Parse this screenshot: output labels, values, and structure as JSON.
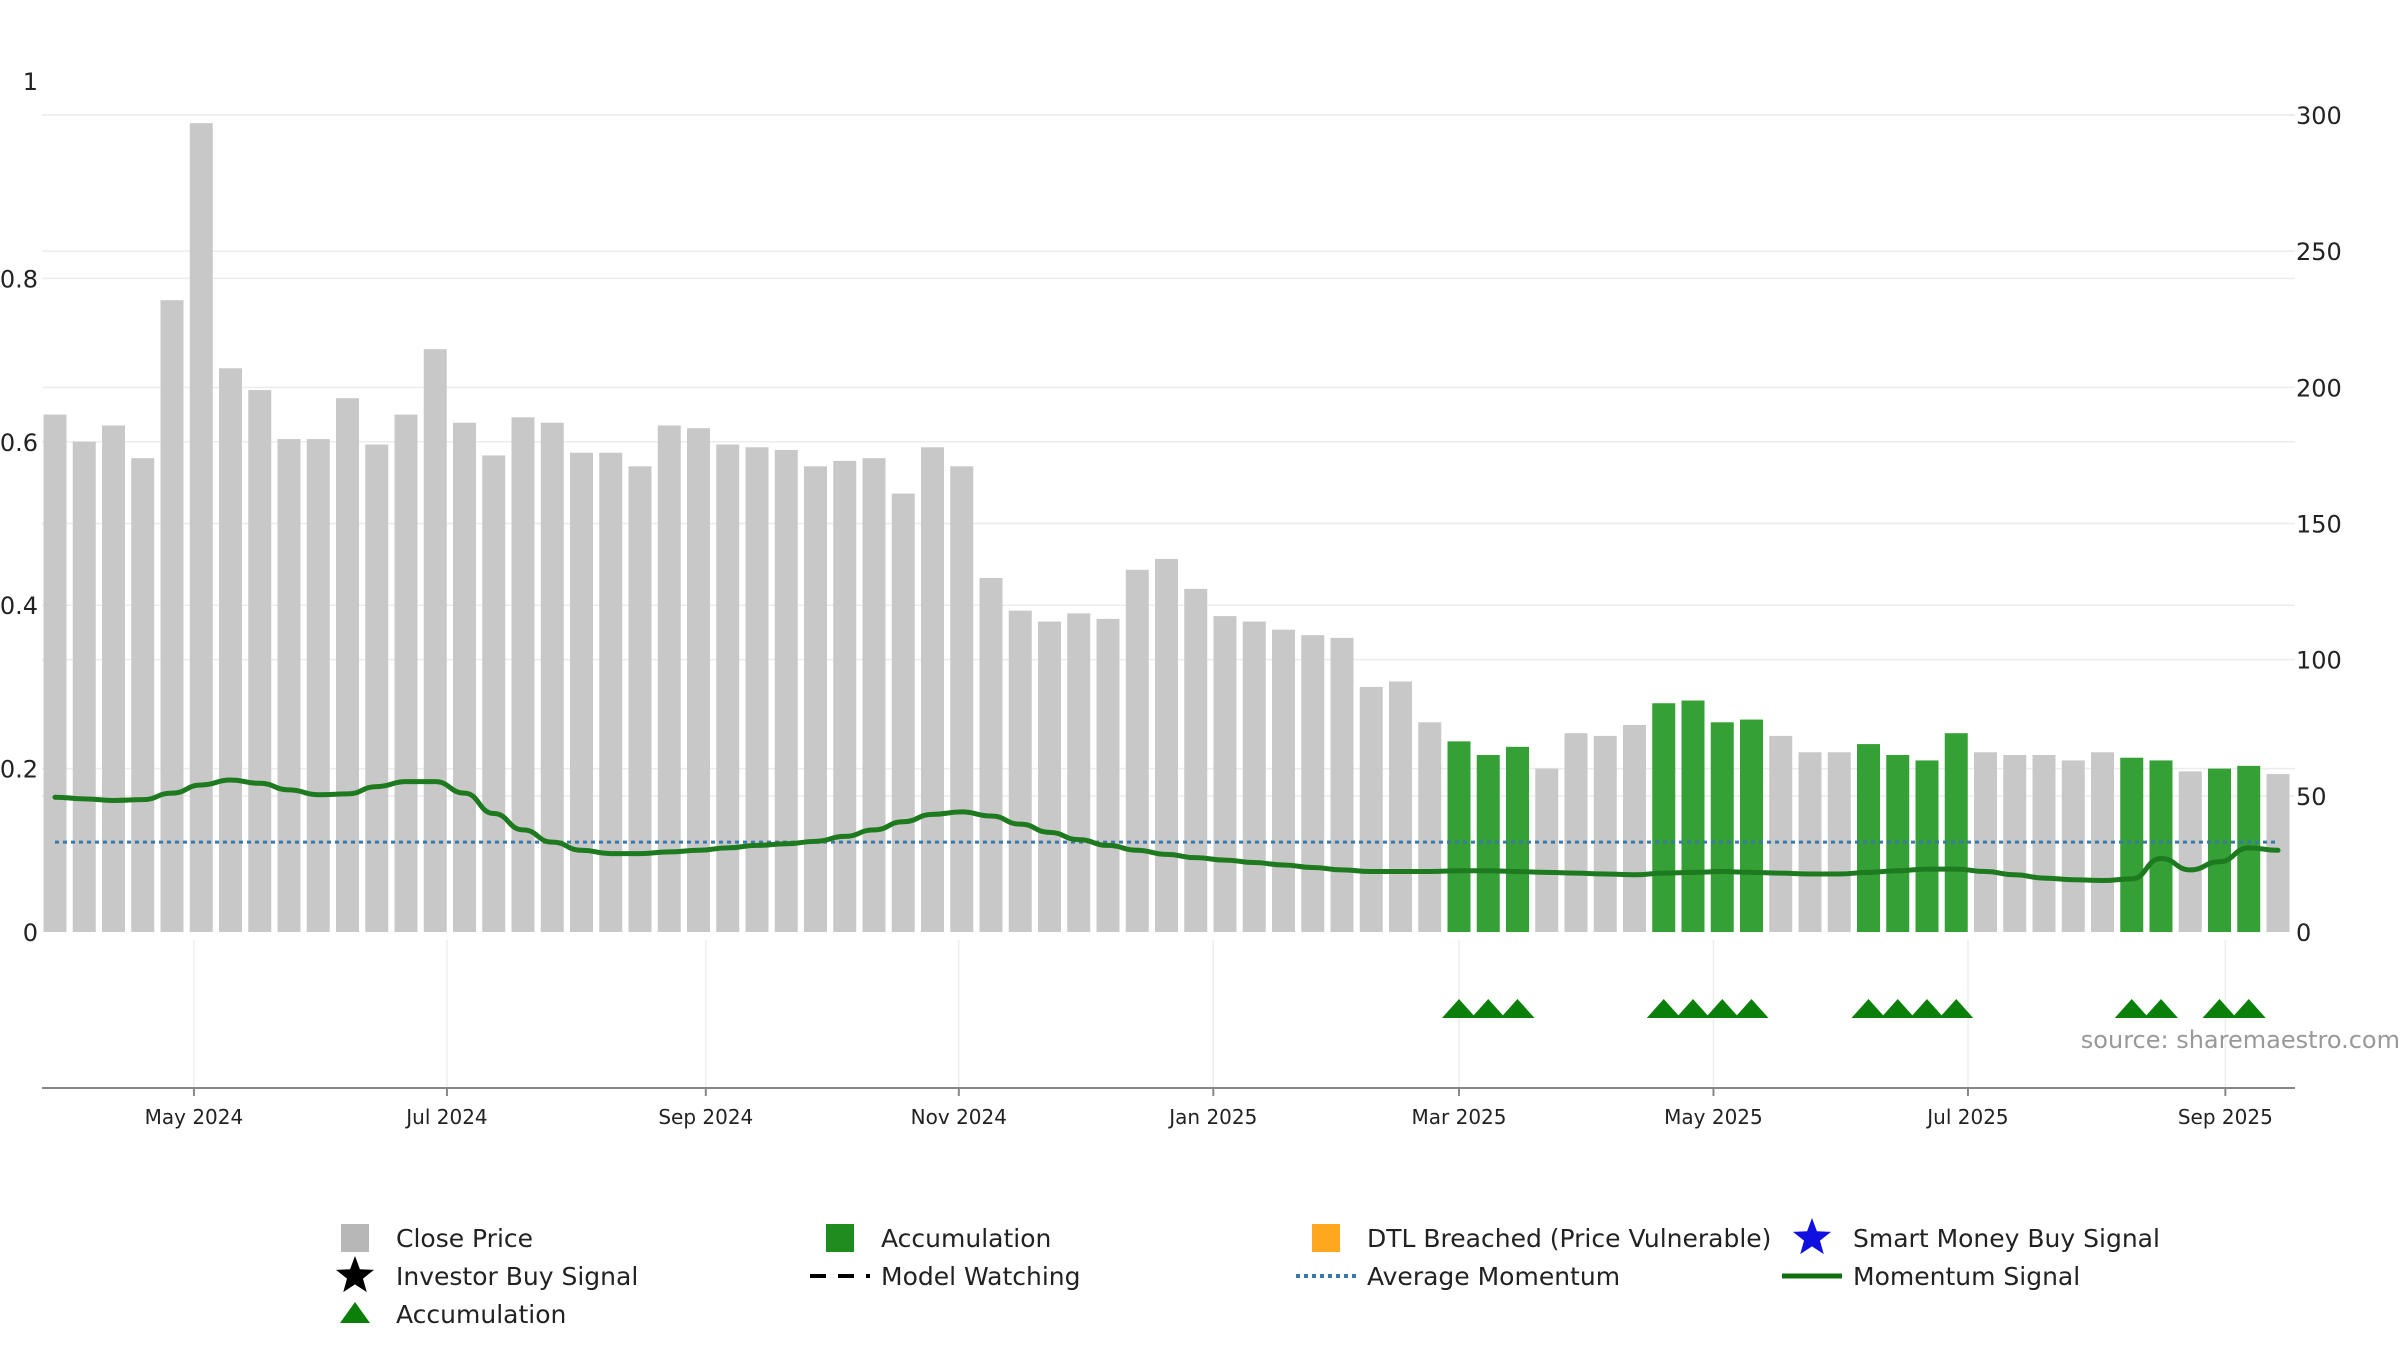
{
  "chart_data": {
    "type": "bar",
    "left_axis": {
      "ticks": [
        0,
        0.2,
        0.4,
        0.6,
        0.8,
        1
      ],
      "tick_labels": [
        "0",
        "0.2",
        "0.4",
        "0.6",
        "0.8",
        "1"
      ],
      "range": [
        0,
        1
      ]
    },
    "right_axis": {
      "ticks": [
        0,
        50,
        100,
        150,
        200,
        250,
        300
      ],
      "tick_labels": [
        "0",
        "50",
        "100",
        "150",
        "200",
        "250",
        "300"
      ],
      "range": [
        0,
        300
      ]
    },
    "x_axis": {
      "tick_labels": [
        "May 2024",
        "Jul 2024",
        "Sep 2024",
        "Nov 2024",
        "Jan 2025",
        "Mar 2025",
        "May 2025",
        "Jul 2025",
        "Sep 2025"
      ],
      "tick_positions": [
        4.75,
        13.4,
        22.25,
        30.9,
        39.6,
        48,
        56.7,
        65.4,
        74.2
      ]
    },
    "bars": {
      "values": [
        190,
        180,
        186,
        174,
        232,
        297,
        207,
        199,
        181,
        181,
        196,
        179,
        190,
        214,
        187,
        175,
        189,
        187,
        176,
        176,
        171,
        186,
        185,
        179,
        178,
        177,
        171,
        173,
        174,
        161,
        178,
        171,
        130,
        118,
        114,
        117,
        115,
        133,
        137,
        126,
        116,
        114,
        111,
        109,
        108,
        90,
        92,
        77,
        70,
        65,
        68,
        60,
        73,
        72,
        76,
        84,
        85,
        77,
        78,
        72,
        66,
        66,
        69,
        65,
        63,
        73,
        66,
        65,
        65,
        63,
        66,
        64,
        63,
        59,
        60,
        61,
        58
      ],
      "accumulation_flags": [
        0,
        0,
        0,
        0,
        0,
        0,
        0,
        0,
        0,
        0,
        0,
        0,
        0,
        0,
        0,
        0,
        0,
        0,
        0,
        0,
        0,
        0,
        0,
        0,
        0,
        0,
        0,
        0,
        0,
        0,
        0,
        0,
        0,
        0,
        0,
        0,
        0,
        0,
        0,
        0,
        0,
        0,
        0,
        0,
        0,
        0,
        0,
        0,
        1,
        1,
        1,
        0,
        0,
        0,
        0,
        1,
        1,
        1,
        1,
        0,
        0,
        0,
        1,
        1,
        1,
        1,
        0,
        0,
        0,
        0,
        0,
        1,
        1,
        0,
        1,
        1,
        0
      ]
    },
    "momentum_signal": [
      0.165,
      0.163,
      0.161,
      0.162,
      0.17,
      0.18,
      0.186,
      0.182,
      0.174,
      0.168,
      0.169,
      0.178,
      0.184,
      0.184,
      0.17,
      0.145,
      0.125,
      0.11,
      0.1,
      0.096,
      0.096,
      0.098,
      0.1,
      0.103,
      0.106,
      0.108,
      0.111,
      0.117,
      0.125,
      0.135,
      0.144,
      0.147,
      0.142,
      0.132,
      0.122,
      0.113,
      0.106,
      0.1,
      0.095,
      0.091,
      0.088,
      0.085,
      0.082,
      0.079,
      0.076,
      0.074,
      0.074,
      0.074,
      0.075,
      0.075,
      0.074,
      0.073,
      0.072,
      0.071,
      0.07,
      0.072,
      0.073,
      0.074,
      0.073,
      0.072,
      0.071,
      0.071,
      0.073,
      0.075,
      0.077,
      0.077,
      0.074,
      0.07,
      0.066,
      0.064,
      0.063,
      0.065,
      0.09,
      0.076,
      0.086,
      0.103,
      0.1
    ],
    "average_momentum": 0.11,
    "accumulation_markers": [
      48,
      49,
      50,
      55,
      56,
      57,
      58,
      62,
      63,
      64,
      65,
      71,
      72,
      74,
      75
    ],
    "source_text": "source: sharemaestro.com",
    "legend": [
      {
        "label": "Close Price",
        "marker": "gray-square"
      },
      {
        "label": "Accumulation",
        "marker": "green-square"
      },
      {
        "label": "DTL Breached (Price Vulnerable)",
        "marker": "orange-square"
      },
      {
        "label": "Smart Money Buy Signal",
        "marker": "blue-star"
      },
      {
        "label": "Investor Buy Signal",
        "marker": "black-star"
      },
      {
        "label": "Model Watching",
        "marker": "black-dashed-line"
      },
      {
        "label": "Average Momentum",
        "marker": "blue-dotted-line"
      },
      {
        "label": "Momentum Signal",
        "marker": "green-line"
      },
      {
        "label": "Accumulation",
        "marker": "green-triangle"
      }
    ]
  },
  "colors": {
    "close_price_bar": "#c8c8c8",
    "accumulation_bar": "#35a035",
    "momentum_line": "#1e7a1e",
    "average_momentum": "#3a78a8",
    "accumulation_triangle": "#0a800a",
    "dtl_orange": "#ffa81f",
    "smart_money_blue": "#1010e0",
    "grid": "#ececec",
    "source_text": "#999999"
  }
}
